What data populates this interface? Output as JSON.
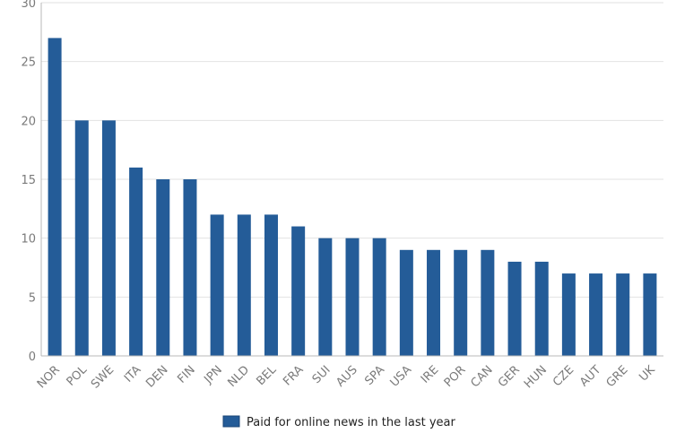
{
  "chart_data": {
    "type": "bar",
    "categories": [
      "NOR",
      "POL",
      "SWE",
      "ITA",
      "DEN",
      "FIN",
      "JPN",
      "NLD",
      "BEL",
      "FRA",
      "SUI",
      "AUS",
      "SPA",
      "USA",
      "IRE",
      "POR",
      "CAN",
      "GER",
      "HUN",
      "CZE",
      "AUT",
      "GRE",
      "UK"
    ],
    "series": [
      {
        "name": "Paid for online news in the last year",
        "values": [
          27,
          20,
          20,
          16,
          15,
          15,
          12,
          12,
          12,
          11,
          10,
          10,
          10,
          9,
          9,
          9,
          9,
          8,
          8,
          7,
          7,
          7,
          7
        ],
        "color": "#245c98"
      }
    ],
    "ylim": [
      0,
      30
    ],
    "yticks": [
      0,
      5,
      10,
      15,
      20,
      25,
      30
    ],
    "grid": true,
    "legend_position": "bottom-center",
    "title": "",
    "xlabel": "",
    "ylabel": ""
  }
}
